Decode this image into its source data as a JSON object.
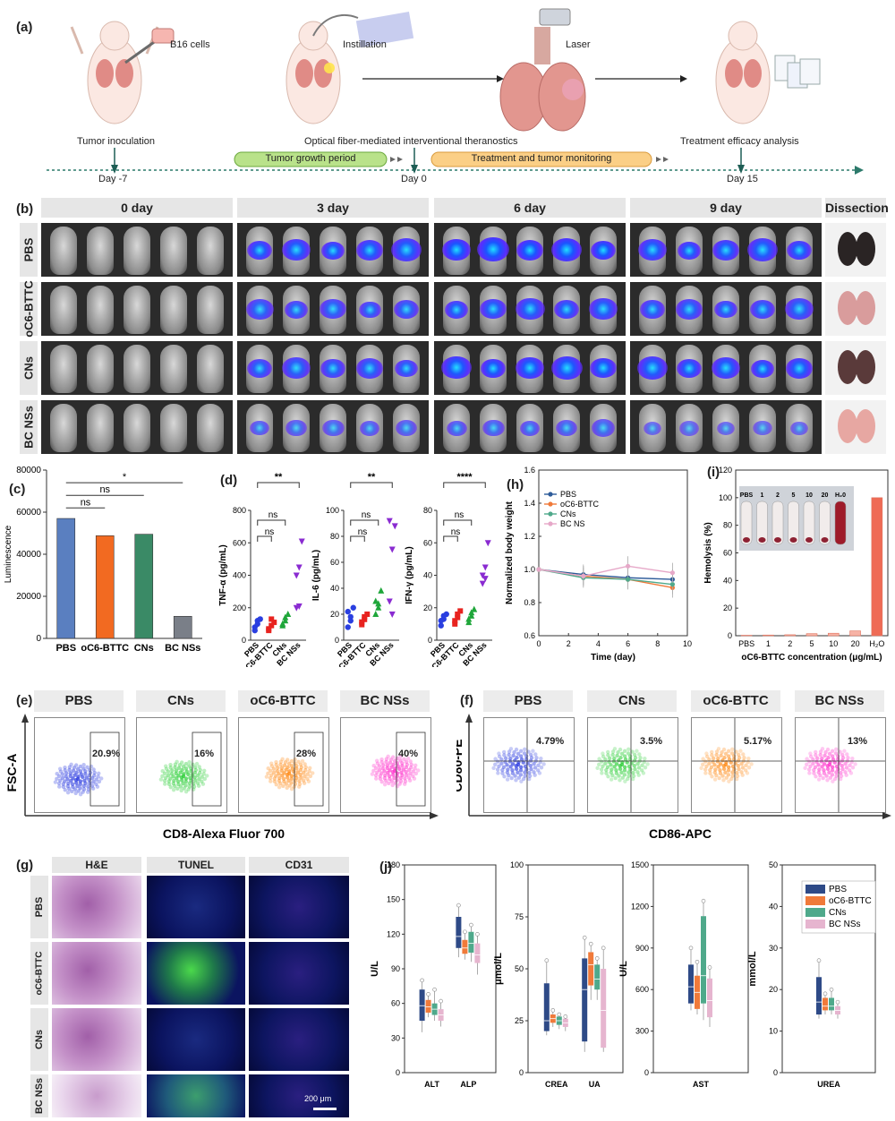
{
  "panel_a": {
    "label": "(a)",
    "b16": "B16 cells",
    "instillation": "Instillation",
    "laser": "Laser",
    "tumor_inoculation": "Tumor inoculation",
    "optical": "Optical fiber-mediated interventional theranostics",
    "treatment_analysis": "Treatment efficacy analysis",
    "growth_period": "Tumor growth period",
    "treatment_monitoring": "Treatment and tumor monitoring",
    "day_m7": "Day -7",
    "day_0": "Day 0",
    "day_15": "Day 15"
  },
  "panel_b": {
    "label": "(b)",
    "cols": [
      "0 day",
      "3 day",
      "6 day",
      "9 day",
      "Dissection"
    ],
    "rows": [
      "PBS",
      "oC6-BTTC",
      "CNs",
      "BC NSs"
    ]
  },
  "panel_c": {
    "label": "(c)",
    "ylabel": "Luminescence",
    "sig": [
      "ns",
      "ns",
      "*"
    ]
  },
  "panel_d": {
    "label": "(d)",
    "ylabels": [
      "TNF-α (pg/mL)",
      "IL-6 (pg/mL)",
      "IFN-γ (pg/mL)"
    ],
    "groups": [
      "PBS",
      "oC6-BTTC",
      "CNs",
      "BC NSs"
    ],
    "sig": {
      "top": [
        "**",
        "**",
        "****"
      ],
      "ns": "ns"
    }
  },
  "panel_e": {
    "label": "(e)",
    "titles": [
      "PBS",
      "CNs",
      "oC6-BTTC",
      "BC NSs"
    ],
    "percents": [
      "20.9%",
      "16%",
      "28%",
      "40%"
    ],
    "ylabel": "FSC-A",
    "xlabel": "CD8-Alexa Fluor 700",
    "colors": [
      "#2f3fe0",
      "#2fcf3a",
      "#ff8c1a",
      "#ff33cc"
    ]
  },
  "panel_f": {
    "label": "(f)",
    "titles": [
      "PBS",
      "CNs",
      "oC6-BTTC",
      "BC NSs"
    ],
    "percents": [
      "4.79%",
      "3.5%",
      "5.17%",
      "13%"
    ],
    "ylabel": "CD80-PE",
    "xlabel": "CD86-APC",
    "colors": [
      "#2f3fe0",
      "#2fcf3a",
      "#ff8c1a",
      "#ff33cc"
    ]
  },
  "panel_g": {
    "label": "(g)",
    "cols": [
      "H&E",
      "TUNEL",
      "CD31"
    ],
    "rows": [
      "PBS",
      "oC6-BTTC",
      "CNs",
      "BC NSs"
    ],
    "scale": "200 μm"
  },
  "panel_h": {
    "label": "(h)"
  },
  "panel_i": {
    "label": "(i)",
    "inset_labels": [
      "PBS",
      "1",
      "2",
      "5",
      "10",
      "20",
      "H₂0"
    ]
  },
  "panel_j": {
    "label": "(j)",
    "legend": [
      "PBS",
      "oC6-BTTC",
      "CNs",
      "BC NSs"
    ],
    "colors": [
      "#2e4a87",
      "#f07a3a",
      "#4fa98b",
      "#e6b5cf"
    ]
  },
  "chart_data": [
    {
      "id": "c",
      "type": "bar",
      "categories": [
        "PBS",
        "oC6-BTTC",
        "CNs",
        "BC NSs"
      ],
      "values": [
        57000,
        48800,
        49500,
        10500
      ],
      "ylabel": "Luminescence",
      "ylim": [
        0,
        80000
      ],
      "yticks": [
        0,
        20000,
        40000,
        60000,
        80000
      ],
      "colors": [
        "#5a7fc0",
        "#f26a21",
        "#3a8a66",
        "#7a7f88"
      ]
    },
    {
      "id": "d1",
      "type": "scatter",
      "ylabel": "TNF-α (pg/mL)",
      "ylim": [
        0,
        800
      ],
      "yticks": [
        0,
        200,
        400,
        600,
        800
      ],
      "groups": [
        "PBS",
        "oC6-BTTC",
        "CNs",
        "BC NSs"
      ],
      "values": [
        [
          80,
          100,
          130,
          60,
          120
        ],
        [
          60,
          90,
          110,
          70,
          130
        ],
        [
          90,
          120,
          160,
          100,
          140
        ],
        [
          200,
          450,
          610,
          400,
          210
        ]
      ]
    },
    {
      "id": "d2",
      "type": "scatter",
      "ylabel": "IL-6 (pg/mL)",
      "ylim": [
        0,
        100
      ],
      "yticks": [
        0,
        20,
        40,
        60,
        80,
        100
      ],
      "groups": [
        "PBS",
        "oC6-BTTC",
        "CNs",
        "BC NSs"
      ],
      "values": [
        [
          10,
          18,
          25,
          22,
          15
        ],
        [
          12,
          16,
          20,
          14,
          18
        ],
        [
          20,
          28,
          38,
          30,
          25
        ],
        [
          30,
          70,
          88,
          92,
          20
        ]
      ]
    },
    {
      "id": "d3",
      "type": "scatter",
      "ylabel": "IFN-γ (pg/mL)",
      "ylim": [
        0,
        80
      ],
      "yticks": [
        0,
        20,
        40,
        60,
        80
      ],
      "groups": [
        "PBS",
        "oC6-BTTC",
        "CNs",
        "BC NSs"
      ],
      "values": [
        [
          9,
          13,
          16,
          12,
          15
        ],
        [
          10,
          14,
          18,
          12,
          16
        ],
        [
          11,
          15,
          19,
          13,
          17
        ],
        [
          35,
          45,
          60,
          40,
          38
        ]
      ]
    },
    {
      "id": "h",
      "type": "line",
      "xlabel": "Time (day)",
      "ylabel": "Normalized body weight",
      "xlim": [
        0,
        10
      ],
      "ylim": [
        0.6,
        1.6
      ],
      "xticks": [
        0,
        2,
        4,
        6,
        8,
        10
      ],
      "yticks": [
        0.6,
        0.8,
        1.0,
        1.2,
        1.4,
        1.6
      ],
      "x": [
        0,
        3,
        6,
        9
      ],
      "series": [
        {
          "name": "PBS",
          "values": [
            1.0,
            0.97,
            0.95,
            0.94
          ],
          "color": "#2e5c9a"
        },
        {
          "name": "oC6-BTTC",
          "values": [
            1.0,
            0.96,
            0.94,
            0.89
          ],
          "color": "#f07a3a"
        },
        {
          "name": "CNs",
          "values": [
            1.0,
            0.95,
            0.94,
            0.91
          ],
          "color": "#4fa98b"
        },
        {
          "name": "BC NS",
          "values": [
            1.0,
            0.96,
            1.02,
            0.98
          ],
          "color": "#e6a8c8"
        }
      ]
    },
    {
      "id": "i",
      "type": "bar",
      "xlabel": "oC6-BTTC concentration (μg/mL)",
      "ylabel": "Hemolysis (%)",
      "categories": [
        "PBS",
        "1",
        "2",
        "5",
        "10",
        "20",
        "H₂O"
      ],
      "values": [
        0,
        0.5,
        0.7,
        1.5,
        1.8,
        3.5,
        100
      ],
      "ylim": [
        0,
        120
      ],
      "yticks": [
        0,
        20,
        40,
        60,
        80,
        100,
        120
      ]
    },
    {
      "id": "j1",
      "type": "box",
      "ylabel": "U/L",
      "ylim": [
        0,
        180
      ],
      "yticks": [
        0,
        30,
        60,
        90,
        120,
        150,
        180
      ],
      "categories": [
        "ALT",
        "ALP"
      ],
      "boxes": [
        [
          [
            35,
            45,
            58,
            72,
            80
          ],
          [
            48,
            52,
            57,
            63,
            68
          ],
          [
            45,
            50,
            55,
            60,
            72
          ],
          [
            40,
            45,
            50,
            55,
            62
          ]
        ],
        [
          [
            100,
            108,
            118,
            135,
            145
          ],
          [
            98,
            103,
            108,
            115,
            122
          ],
          [
            96,
            104,
            112,
            122,
            128
          ],
          [
            85,
            95,
            102,
            112,
            120
          ]
        ]
      ]
    },
    {
      "id": "j2",
      "type": "box",
      "ylabel": "μmol/L",
      "ylim": [
        0,
        100
      ],
      "yticks": [
        0,
        25,
        50,
        75,
        100
      ],
      "categories": [
        "CREA",
        "UA"
      ],
      "boxes": [
        [
          [
            18,
            20,
            25,
            43,
            54
          ],
          [
            22,
            24,
            26,
            28,
            30
          ],
          [
            21,
            23,
            25,
            27,
            28
          ],
          [
            20,
            22,
            24,
            26,
            27
          ]
        ],
        [
          [
            10,
            15,
            40,
            55,
            65
          ],
          [
            35,
            42,
            52,
            58,
            62
          ],
          [
            35,
            40,
            45,
            52,
            55
          ],
          [
            10,
            12,
            30,
            50,
            60
          ]
        ]
      ]
    },
    {
      "id": "j3",
      "type": "box",
      "ylabel": "U/L",
      "ylim": [
        0,
        1500
      ],
      "yticks": [
        0,
        300,
        600,
        900,
        1200,
        1500
      ],
      "categories": [
        "AST"
      ],
      "boxes": [
        [
          [
            450,
            500,
            620,
            780,
            900
          ],
          [
            420,
            460,
            580,
            700,
            800
          ],
          [
            380,
            500,
            700,
            1130,
            1240
          ],
          [
            330,
            400,
            520,
            680,
            760
          ]
        ]
      ]
    },
    {
      "id": "j4",
      "type": "box",
      "ylabel": "mmol/L",
      "ylim": [
        0,
        50
      ],
      "yticks": [
        0,
        10,
        20,
        30,
        40,
        50
      ],
      "categories": [
        "UREA"
      ],
      "boxes": [
        [
          [
            13,
            14,
            17,
            23,
            27
          ],
          [
            14,
            15,
            16,
            18,
            19
          ],
          [
            14,
            15,
            16,
            18,
            20
          ],
          [
            13,
            14,
            15,
            16,
            17
          ]
        ]
      ]
    }
  ]
}
